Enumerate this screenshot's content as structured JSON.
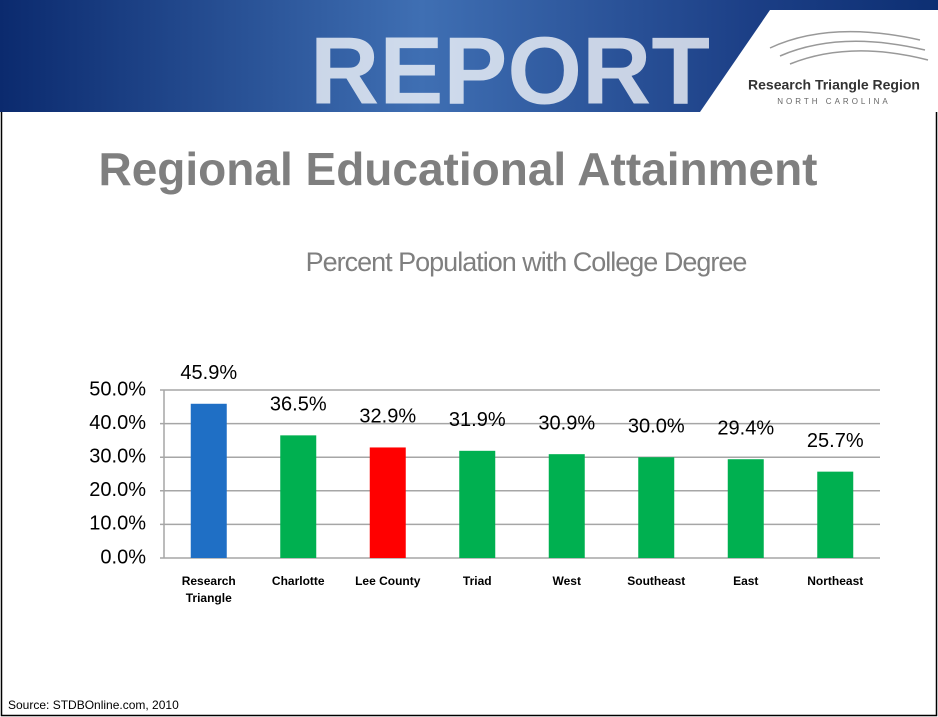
{
  "header": {
    "banner": "REPORT",
    "logo_title": "Research Triangle Region",
    "logo_subtitle": "NORTH CAROLINA"
  },
  "title": "Regional Educational Attainment",
  "source": "Source: STDBOnline.com, 2010",
  "chart_data": {
    "type": "bar",
    "title": "Percent Population with College Degree",
    "categories": [
      "Research Triangle",
      "Charlotte",
      "Lee County",
      "Triad",
      "West",
      "Southeast",
      "East",
      "Northeast"
    ],
    "values": [
      45.9,
      36.5,
      32.9,
      31.9,
      30.9,
      30.0,
      29.4,
      25.7
    ],
    "value_labels": [
      "45.9%",
      "36.5%",
      "32.9%",
      "31.9%",
      "30.9%",
      "30.0%",
      "29.4%",
      "25.7%"
    ],
    "colors": [
      "#1f6fc5",
      "#00b050",
      "#ff0000",
      "#00b050",
      "#00b050",
      "#00b050",
      "#00b050",
      "#00b050"
    ],
    "ylim": [
      0,
      50
    ],
    "yticks": [
      {
        "value": 0,
        "label": "0.0%"
      },
      {
        "value": 10,
        "label": "10.0%"
      },
      {
        "value": 20,
        "label": "20.0%"
      },
      {
        "value": 30,
        "label": "30.0%"
      },
      {
        "value": 40,
        "label": "40.0%"
      },
      {
        "value": 50,
        "label": "50.0%"
      }
    ],
    "grid": true
  }
}
